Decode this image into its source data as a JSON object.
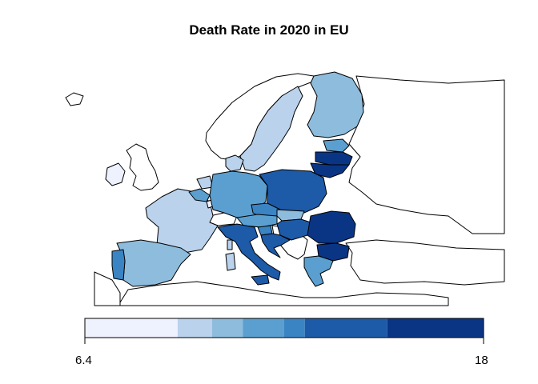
{
  "title": "Death Rate in 2020 in EU",
  "legend": {
    "min_label": "6.4",
    "max_label": "18",
    "bins": [
      {
        "from": 6.4,
        "to": 9.1,
        "color": "#eef1fe"
      },
      {
        "from": 9.1,
        "to": 10.1,
        "color": "#bad2ec"
      },
      {
        "from": 10.1,
        "to": 11.0,
        "color": "#8ebcdd"
      },
      {
        "from": 11.0,
        "to": 12.2,
        "color": "#5a9fcf"
      },
      {
        "from": 12.2,
        "to": 12.8,
        "color": "#3a84c4"
      },
      {
        "from": 12.8,
        "to": 15.2,
        "color": "#1d5aa8"
      },
      {
        "from": 15.2,
        "to": 18.0,
        "color": "#0a3585"
      }
    ]
  },
  "colors": {
    "non_eu": "#ffffff",
    "border": "#000000"
  }
}
